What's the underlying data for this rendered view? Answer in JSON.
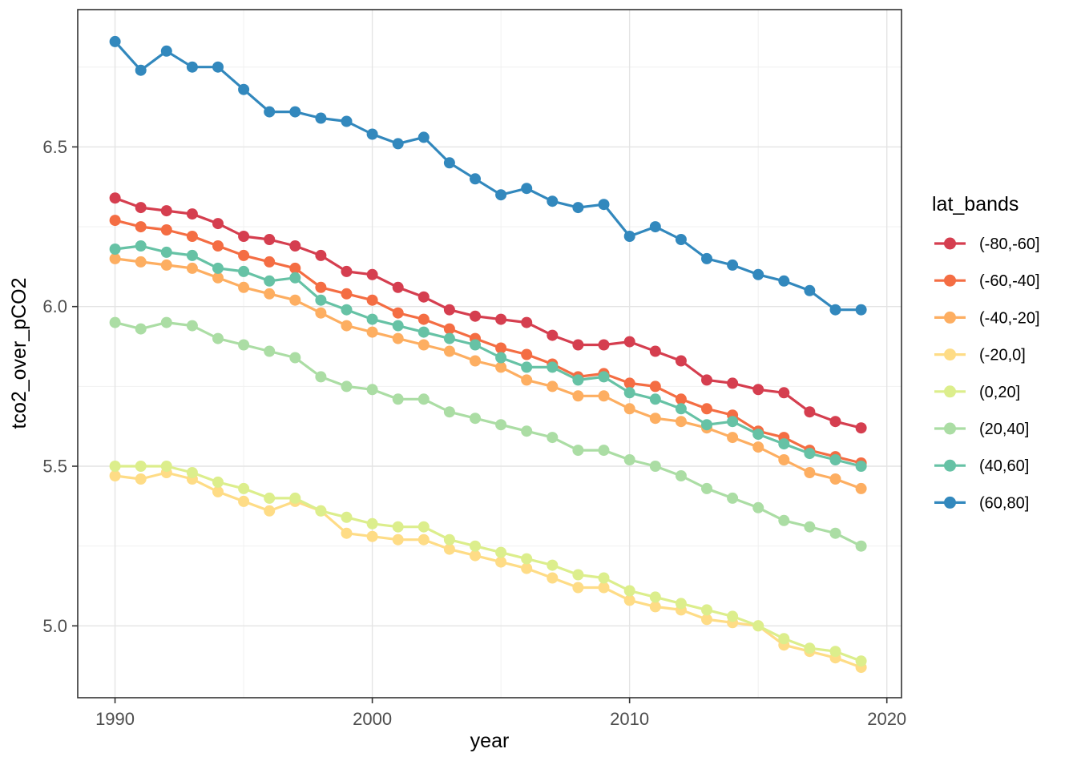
{
  "chart_data": {
    "type": "line",
    "title": "",
    "xlabel": "year",
    "ylabel": "tco2_over_pCO2",
    "legend_title": "lat_bands",
    "legend_position": "right",
    "grid": true,
    "marker": "circle",
    "xlim": [
      1988.55,
      2020.57
    ],
    "ylim": [
      4.775,
      6.93
    ],
    "x_ticks": [
      1990,
      2000,
      2010,
      2020
    ],
    "x_minor_ticks": [
      1995,
      2005,
      2015
    ],
    "y_ticks": [
      5.0,
      5.5,
      6.0,
      6.5
    ],
    "y_minor_ticks": [
      5.25,
      5.75,
      6.25,
      6.75
    ],
    "x": [
      1990,
      1991,
      1992,
      1993,
      1994,
      1995,
      1996,
      1997,
      1998,
      1999,
      2000,
      2001,
      2002,
      2003,
      2004,
      2005,
      2006,
      2007,
      2008,
      2009,
      2010,
      2011,
      2012,
      2013,
      2014,
      2015,
      2016,
      2017,
      2018,
      2019
    ],
    "series": [
      {
        "name": "(-80,-60]",
        "color": "#D53E4F",
        "values": [
          6.34,
          6.31,
          6.3,
          6.29,
          6.26,
          6.22,
          6.21,
          6.19,
          6.16,
          6.11,
          6.1,
          6.06,
          6.03,
          5.99,
          5.97,
          5.96,
          5.95,
          5.91,
          5.88,
          5.88,
          5.89,
          5.86,
          5.83,
          5.77,
          5.76,
          5.74,
          5.73,
          5.67,
          5.64,
          5.62
        ]
      },
      {
        "name": "(-60,-40]",
        "color": "#F46D43",
        "values": [
          6.27,
          6.25,
          6.24,
          6.22,
          6.19,
          6.16,
          6.14,
          6.12,
          6.06,
          6.04,
          6.02,
          5.98,
          5.96,
          5.93,
          5.9,
          5.87,
          5.85,
          5.82,
          5.78,
          5.79,
          5.76,
          5.75,
          5.71,
          5.68,
          5.66,
          5.61,
          5.59,
          5.55,
          5.53,
          5.51
        ]
      },
      {
        "name": "(-40,-20]",
        "color": "#FDAE61",
        "values": [
          6.15,
          6.14,
          6.13,
          6.12,
          6.09,
          6.06,
          6.04,
          6.02,
          5.98,
          5.94,
          5.92,
          5.9,
          5.88,
          5.86,
          5.83,
          5.81,
          5.77,
          5.75,
          5.72,
          5.72,
          5.68,
          5.65,
          5.64,
          5.62,
          5.59,
          5.56,
          5.52,
          5.48,
          5.46,
          5.43
        ]
      },
      {
        "name": "(-20,0]",
        "color": "#FEDC86",
        "values": [
          5.47,
          5.46,
          5.48,
          5.46,
          5.42,
          5.39,
          5.36,
          5.39,
          5.36,
          5.29,
          5.28,
          5.27,
          5.27,
          5.24,
          5.22,
          5.2,
          5.18,
          5.15,
          5.12,
          5.12,
          5.08,
          5.06,
          5.05,
          5.02,
          5.01,
          5.0,
          4.94,
          4.92,
          4.9,
          4.87
        ]
      },
      {
        "name": "(0,20]",
        "color": "#DCEE8C",
        "values": [
          5.5,
          5.5,
          5.5,
          5.48,
          5.45,
          5.43,
          5.4,
          5.4,
          5.36,
          5.34,
          5.32,
          5.31,
          5.31,
          5.27,
          5.25,
          5.23,
          5.21,
          5.19,
          5.16,
          5.15,
          5.11,
          5.09,
          5.07,
          5.05,
          5.03,
          5.0,
          4.96,
          4.93,
          4.92,
          4.89
        ]
      },
      {
        "name": "(20,40]",
        "color": "#ABDDA4",
        "values": [
          5.95,
          5.93,
          5.95,
          5.94,
          5.9,
          5.88,
          5.86,
          5.84,
          5.78,
          5.75,
          5.74,
          5.71,
          5.71,
          5.67,
          5.65,
          5.63,
          5.61,
          5.59,
          5.55,
          5.55,
          5.52,
          5.5,
          5.47,
          5.43,
          5.4,
          5.37,
          5.33,
          5.31,
          5.29,
          5.25
        ]
      },
      {
        "name": "(40,60]",
        "color": "#66C2A5",
        "values": [
          6.18,
          6.19,
          6.17,
          6.16,
          6.12,
          6.11,
          6.08,
          6.09,
          6.02,
          5.99,
          5.96,
          5.94,
          5.92,
          5.9,
          5.88,
          5.84,
          5.81,
          5.81,
          5.77,
          5.78,
          5.73,
          5.71,
          5.68,
          5.63,
          5.64,
          5.6,
          5.57,
          5.54,
          5.52,
          5.5
        ]
      },
      {
        "name": "(60,80]",
        "color": "#3288BD",
        "values": [
          6.83,
          6.74,
          6.8,
          6.75,
          6.75,
          6.68,
          6.61,
          6.61,
          6.59,
          6.58,
          6.54,
          6.51,
          6.53,
          6.45,
          6.4,
          6.35,
          6.37,
          6.33,
          6.31,
          6.32,
          6.22,
          6.25,
          6.21,
          6.15,
          6.13,
          6.1,
          6.08,
          6.05,
          5.99,
          5.99
        ]
      }
    ]
  },
  "style": {
    "background": "#ffffff",
    "panel_border_color": "#333333",
    "grid_major_color": "#e4e4e4",
    "grid_minor_color": "#efefef",
    "tick_label_color": "#4d4d4d",
    "axis_title_color": "#000000"
  }
}
